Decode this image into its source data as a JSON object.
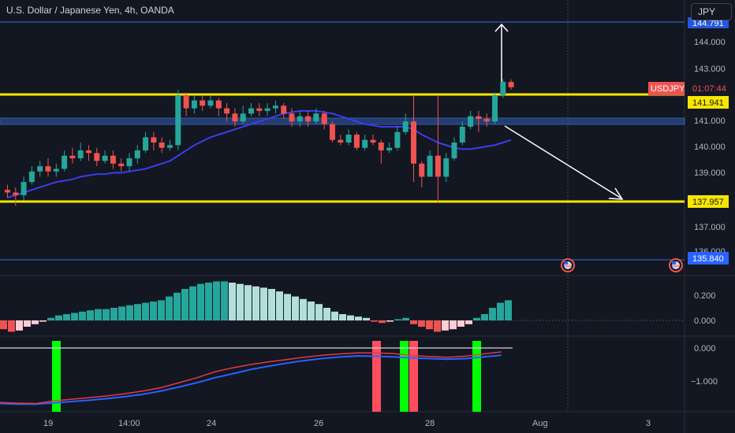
{
  "header": {
    "title": "U.S. Dollar / Japanese Yen, 4h, OANDA",
    "currency_button": "JPY"
  },
  "price_axis": {
    "ticks": [
      "144.000",
      "143.000",
      "141.000",
      "140.000",
      "139.000",
      "137.000",
      "136.000"
    ],
    "hidden_top_tag": "144.791"
  },
  "osc1_axis": {
    "ticks": [
      "0.200",
      "0.000"
    ]
  },
  "osc2_axis": {
    "ticks": [
      "0.000",
      "−1.000"
    ]
  },
  "time_axis": {
    "ticks": [
      "19",
      "14:00",
      "24",
      "26",
      "28",
      "Aug",
      "3"
    ]
  },
  "tags": {
    "symbol": "USDJPY",
    "countdown": "01:07:44",
    "level_upper": "141.941",
    "level_lower": "137.957",
    "level_bottom": "135.840"
  },
  "colors": {
    "background": "#131722",
    "bull": "#26a69a",
    "bear": "#ef5350",
    "level_line": "#f7e600",
    "zone": "#2a4a8a",
    "ma": "#3c3cf0",
    "hist_bull_strong": "#26a69a",
    "hist_bull_weak": "#b2dfdb",
    "hist_bear_strong": "#ef5350",
    "hist_bear_weak": "#ffcdd2",
    "signal_green": "#00ff00",
    "signal_red": "#ff4d5e"
  },
  "chart_data": {
    "type": "candlestick",
    "symbol": "USDJPY",
    "timeframe": "4h",
    "price_range": [
      135.84,
      144.9
    ],
    "key_levels": [
      141.941,
      137.957,
      135.84,
      144.791
    ],
    "current_price": 142.3,
    "candles": [
      [
        138.4,
        138.3,
        138.6,
        138.1
      ],
      [
        138.3,
        138.2,
        138.5,
        137.8
      ],
      [
        138.2,
        138.7,
        138.9,
        138.0
      ],
      [
        138.7,
        139.1,
        139.3,
        138.6
      ],
      [
        139.1,
        139.3,
        139.5,
        138.9
      ],
      [
        139.3,
        139.1,
        139.6,
        138.9
      ],
      [
        139.1,
        139.2,
        139.4,
        138.9
      ],
      [
        139.2,
        139.7,
        139.9,
        139.1
      ],
      [
        139.7,
        139.6,
        140.0,
        139.4
      ],
      [
        139.6,
        139.9,
        140.2,
        139.5
      ],
      [
        139.9,
        139.8,
        140.1,
        139.5
      ],
      [
        139.8,
        139.5,
        140.0,
        139.3
      ],
      [
        139.5,
        139.7,
        139.9,
        139.4
      ],
      [
        139.7,
        139.4,
        139.9,
        139.2
      ],
      [
        139.4,
        139.3,
        139.6,
        139.1
      ],
      [
        139.3,
        139.6,
        139.8,
        139.1
      ],
      [
        139.6,
        139.9,
        140.1,
        139.4
      ],
      [
        139.9,
        140.4,
        140.6,
        139.8
      ],
      [
        140.4,
        140.2,
        140.6,
        139.9
      ],
      [
        140.2,
        140.0,
        140.4,
        139.8
      ],
      [
        140.0,
        140.1,
        140.3,
        139.9
      ],
      [
        140.1,
        142.0,
        142.2,
        139.9
      ],
      [
        142.0,
        141.5,
        142.1,
        141.2
      ],
      [
        141.5,
        141.8,
        142.0,
        141.3
      ],
      [
        141.8,
        141.6,
        142.0,
        141.4
      ],
      [
        141.6,
        141.8,
        142.0,
        141.5
      ],
      [
        141.8,
        141.5,
        141.9,
        141.2
      ],
      [
        141.5,
        141.3,
        141.7,
        141.0
      ],
      [
        141.3,
        141.0,
        141.5,
        140.8
      ],
      [
        141.0,
        141.3,
        141.6,
        140.9
      ],
      [
        141.3,
        141.5,
        141.7,
        141.2
      ],
      [
        141.5,
        141.4,
        141.7,
        141.2
      ],
      [
        141.4,
        141.5,
        141.7,
        141.2
      ],
      [
        141.5,
        141.6,
        141.8,
        141.3
      ],
      [
        141.6,
        141.3,
        141.7,
        141.1
      ],
      [
        141.3,
        141.0,
        141.5,
        140.8
      ],
      [
        141.0,
        141.2,
        141.4,
        140.8
      ],
      [
        141.2,
        141.0,
        141.4,
        140.8
      ],
      [
        141.0,
        141.3,
        141.5,
        140.9
      ],
      [
        141.3,
        140.9,
        141.4,
        140.7
      ],
      [
        140.9,
        140.3,
        141.0,
        140.2
      ],
      [
        140.3,
        140.2,
        140.5,
        140.1
      ],
      [
        140.2,
        140.5,
        140.7,
        140.1
      ],
      [
        140.5,
        140.0,
        140.6,
        139.9
      ],
      [
        140.0,
        140.3,
        140.5,
        139.9
      ],
      [
        140.3,
        140.2,
        140.5,
        140.1
      ],
      [
        140.2,
        139.9,
        140.3,
        139.4
      ],
      [
        139.9,
        140.0,
        140.2,
        139.8
      ],
      [
        140.0,
        140.6,
        140.8,
        139.9
      ],
      [
        140.6,
        141.0,
        141.3,
        140.5
      ],
      [
        141.0,
        139.4,
        142.0,
        138.7
      ],
      [
        139.4,
        138.9,
        139.5,
        138.5
      ],
      [
        138.9,
        139.7,
        139.9,
        138.9
      ],
      [
        139.7,
        138.9,
        142.0,
        137.9
      ],
      [
        138.9,
        139.6,
        139.8,
        138.7
      ],
      [
        139.6,
        140.2,
        140.4,
        139.5
      ],
      [
        140.2,
        140.8,
        141.0,
        140.1
      ],
      [
        140.8,
        141.2,
        141.4,
        140.7
      ],
      [
        141.2,
        141.1,
        141.4,
        140.6
      ],
      [
        141.1,
        141.0,
        141.3,
        140.8
      ],
      [
        141.0,
        142.0,
        142.1,
        140.9
      ],
      [
        142.0,
        142.5,
        142.6,
        141.9
      ],
      [
        142.5,
        142.3,
        142.6,
        142.2
      ]
    ],
    "moving_average": [
      138.1,
      138.2,
      138.3,
      138.4,
      138.5,
      138.6,
      138.7,
      138.75,
      138.8,
      138.9,
      138.95,
      139.0,
      139.0,
      139.05,
      139.05,
      139.1,
      139.15,
      139.2,
      139.3,
      139.4,
      139.5,
      139.7,
      139.9,
      140.1,
      140.25,
      140.4,
      140.5,
      140.6,
      140.7,
      140.8,
      140.9,
      141.0,
      141.1,
      141.2,
      141.3,
      141.35,
      141.4,
      141.4,
      141.4,
      141.35,
      141.3,
      141.2,
      141.1,
      141.0,
      140.9,
      140.85,
      140.8,
      140.8,
      140.8,
      140.8,
      140.7,
      140.5,
      140.35,
      140.2,
      140.1,
      140.0,
      139.95,
      139.95,
      140.0,
      140.05,
      140.1,
      140.2,
      140.3
    ],
    "histogram": [
      -0.07,
      -0.09,
      -0.08,
      -0.05,
      -0.03,
      -0.01,
      0.02,
      0.04,
      0.05,
      0.06,
      0.07,
      0.08,
      0.09,
      0.09,
      0.1,
      0.11,
      0.12,
      0.13,
      0.14,
      0.15,
      0.16,
      0.19,
      0.22,
      0.25,
      0.27,
      0.29,
      0.3,
      0.31,
      0.31,
      0.3,
      0.29,
      0.28,
      0.27,
      0.26,
      0.25,
      0.23,
      0.21,
      0.19,
      0.17,
      0.15,
      0.13,
      0.1,
      0.07,
      0.05,
      0.04,
      0.03,
      0.02,
      -0.01,
      -0.02,
      -0.01,
      0.01,
      0.02,
      -0.03,
      -0.05,
      -0.07,
      -0.09,
      -0.08,
      -0.07,
      -0.05,
      -0.03,
      0.02,
      0.05,
      0.1,
      0.14,
      0.16
    ],
    "oscillator_red": [
      -1.65,
      -1.67,
      -1.68,
      -1.6,
      -1.55,
      -1.5,
      -1.45,
      -1.38,
      -1.3,
      -1.2,
      -1.05,
      -0.9,
      -0.72,
      -0.6,
      -0.5,
      -0.42,
      -0.35,
      -0.28,
      -0.22,
      -0.18,
      -0.15,
      -0.15,
      -0.17,
      -0.23,
      -0.26,
      -0.28,
      -0.25,
      -0.18,
      -0.12
    ],
    "oscillator_blue": [
      -1.68,
      -1.7,
      -1.7,
      -1.66,
      -1.62,
      -1.58,
      -1.53,
      -1.47,
      -1.4,
      -1.3,
      -1.18,
      -1.05,
      -0.9,
      -0.78,
      -0.65,
      -0.55,
      -0.46,
      -0.38,
      -0.32,
      -0.27,
      -0.24,
      -0.25,
      -0.27,
      -0.3,
      -0.32,
      -0.34,
      -0.32,
      -0.27,
      -0.22
    ],
    "signals": [
      {
        "color": "green"
      },
      {
        "color": "red"
      },
      {
        "color": "green"
      },
      {
        "color": "red"
      },
      {
        "color": "green"
      }
    ]
  }
}
